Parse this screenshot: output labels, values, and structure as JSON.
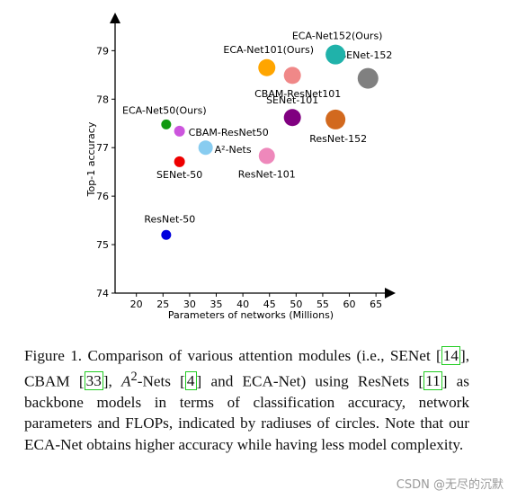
{
  "chart_data": {
    "type": "scatter",
    "xlabel": "Parameters of networks (Millions)",
    "ylabel": "Top-1 accuracy",
    "xlim": [
      16,
      67
    ],
    "ylim": [
      74,
      79.6
    ],
    "xticks": [
      20,
      25,
      30,
      35,
      40,
      45,
      50,
      55,
      60,
      65
    ],
    "yticks": [
      74,
      75,
      76,
      77,
      78,
      79
    ],
    "grid": false,
    "points": [
      {
        "label": "ResNet-50",
        "x": 25.6,
        "y": 75.2,
        "size": 5.5,
        "color": "#0000dd"
      },
      {
        "label": "SENet-50",
        "x": 28.1,
        "y": 76.71,
        "size": 6,
        "color": "#ee0000"
      },
      {
        "label": "CBAM-ResNet50",
        "x": 28.1,
        "y": 77.34,
        "size": 6,
        "color": "#cc55dd"
      },
      {
        "label": "ECA-Net50(Ours)",
        "x": 25.6,
        "y": 77.48,
        "size": 5.5,
        "color": "#119911"
      },
      {
        "label": "A²-Nets",
        "x": 33.0,
        "y": 77.0,
        "size": 8,
        "color": "#88ccf0"
      },
      {
        "label": "ResNet-101",
        "x": 44.5,
        "y": 76.83,
        "size": 9,
        "color": "#ee88bb"
      },
      {
        "label": "SENet-101",
        "x": 49.3,
        "y": 77.62,
        "size": 9.5,
        "color": "#800080"
      },
      {
        "label": "CBAM-ResNet101",
        "x": 49.3,
        "y": 78.49,
        "size": 9.5,
        "color": "#f08888"
      },
      {
        "label": "ECA-Net101(Ours)",
        "x": 44.5,
        "y": 78.65,
        "size": 9.5,
        "color": "#ffa500"
      },
      {
        "label": "ResNet-152",
        "x": 57.4,
        "y": 77.58,
        "size": 11,
        "color": "#d2691e"
      },
      {
        "label": "SENet-152",
        "x": 63.5,
        "y": 78.43,
        "size": 11.5,
        "color": "#808080"
      },
      {
        "label": "ECA-Net152(Ours)",
        "x": 57.4,
        "y": 78.92,
        "size": 11,
        "color": "#20b2aa"
      }
    ]
  },
  "caption": {
    "segments": [
      {
        "text": "Figure 1. Comparison of various attention modules (i.e., SENet [",
        "type": "plain"
      },
      {
        "text": "14",
        "type": "ref"
      },
      {
        "text": "], CBAM [",
        "type": "plain"
      },
      {
        "text": "33",
        "type": "ref"
      },
      {
        "text": "], ",
        "type": "plain"
      },
      {
        "text": "A",
        "type": "italic"
      },
      {
        "text": "2",
        "type": "sup"
      },
      {
        "text": "-Nets [",
        "type": "plain"
      },
      {
        "text": "4",
        "type": "ref"
      },
      {
        "text": "] and ECA-Net) using ResNets [",
        "type": "plain"
      },
      {
        "text": "11",
        "type": "ref"
      },
      {
        "text": "] as backbone models in terms of classification accuracy, network parameters and FLOPs, indicated by radiuses of circles. Note that our ECA-Net obtains higher accuracy while having less model complexity.",
        "type": "plain"
      }
    ]
  },
  "watermark": "CSDN @无尽的沉默"
}
